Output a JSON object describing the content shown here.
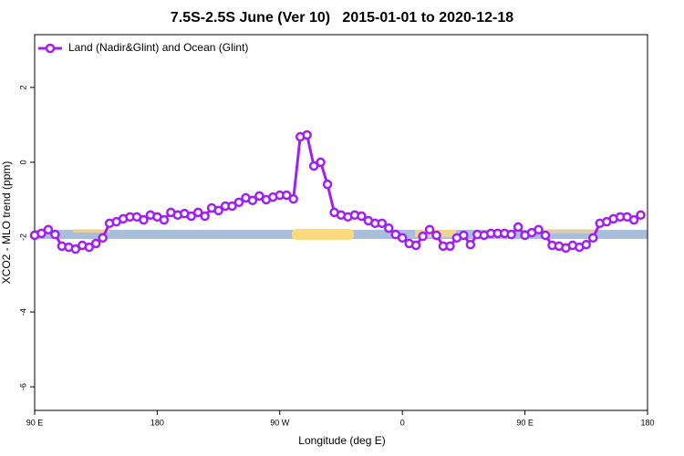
{
  "chart_data": {
    "type": "line",
    "title": "7.5S-2.5S June (Ver 10)   2015-01-01 to 2020-12-18",
    "x_label": "Longitude (deg E)",
    "y_label": "XCO2 - MLO trend (ppm)",
    "xlim": [
      90,
      540
    ],
    "ylim": [
      -6.63,
      3.41
    ],
    "xticks": [
      {
        "value": 90,
        "label": "90 E"
      },
      {
        "value": 180,
        "label": "180"
      },
      {
        "value": 270,
        "label": "90 W"
      },
      {
        "value": 360,
        "label": "0"
      },
      {
        "value": 450,
        "label": "90 E"
      },
      {
        "value": 540,
        "label": "180"
      }
    ],
    "yticks": [
      2,
      0,
      -2,
      -4,
      -6
    ],
    "legend": "top-left",
    "x": [
      90,
      95,
      100,
      105,
      110,
      115,
      120,
      125,
      130,
      135,
      140,
      145,
      150,
      155,
      160,
      165,
      170,
      175,
      180,
      185,
      190,
      195,
      200,
      205,
      210,
      215,
      220,
      225,
      230,
      235,
      240,
      245,
      250,
      255,
      260,
      265,
      270,
      275,
      280,
      285,
      290,
      295,
      300,
      305,
      310,
      315,
      320,
      325,
      330,
      335,
      340,
      345,
      350,
      355,
      360,
      365,
      370,
      375,
      380,
      385,
      390,
      395,
      400,
      405,
      410,
      415,
      420,
      425,
      430,
      435,
      440,
      445,
      450,
      455,
      460,
      465,
      470,
      475,
      480,
      485,
      490,
      495,
      500,
      505,
      510,
      515,
      520,
      525,
      530,
      535
    ],
    "series": [
      {
        "name": "Land (Nadir&Glint) and Ocean (Glint)",
        "color": "#a020f0",
        "values": [
          -1.95,
          -1.9,
          -1.8,
          -1.93,
          -2.24,
          -2.27,
          -2.32,
          -2.22,
          -2.27,
          -2.17,
          -2.02,
          -1.63,
          -1.59,
          -1.51,
          -1.46,
          -1.46,
          -1.54,
          -1.41,
          -1.46,
          -1.54,
          -1.34,
          -1.41,
          -1.37,
          -1.44,
          -1.34,
          -1.44,
          -1.22,
          -1.29,
          -1.17,
          -1.17,
          -1.07,
          -0.95,
          -1.02,
          -0.9,
          -1.0,
          -0.93,
          -0.88,
          -0.88,
          -0.98,
          0.68,
          0.73,
          -0.1,
          0.0,
          -0.59,
          -1.34,
          -1.41,
          -1.46,
          -1.41,
          -1.44,
          -1.56,
          -1.63,
          -1.63,
          -1.76,
          -1.93,
          -2.02,
          -2.17,
          -2.22,
          -1.98,
          -1.8,
          -1.95,
          -2.24,
          -2.24,
          -2.02,
          -1.95,
          -2.2,
          -1.93,
          -1.95,
          -1.9,
          -1.9,
          -1.9,
          -1.93,
          -1.73,
          -1.95,
          -1.88,
          -1.8,
          -1.95,
          -2.22,
          -2.24,
          -2.29,
          -2.22,
          -2.27,
          -2.2,
          -2.02,
          -1.63,
          -1.59,
          -1.51,
          -1.46,
          -1.46,
          -1.54,
          -1.41
        ]
      }
    ]
  }
}
